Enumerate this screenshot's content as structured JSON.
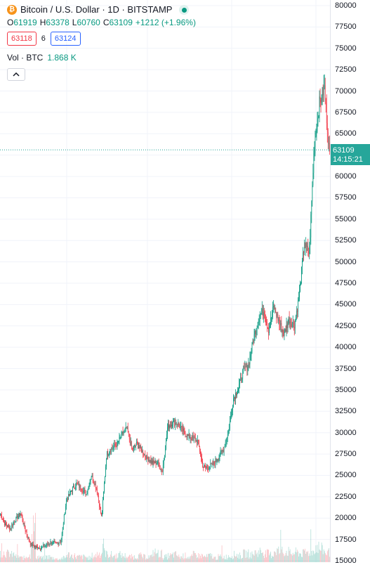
{
  "symbol": {
    "icon": "bitcoin-icon",
    "icon_glyph": "₿",
    "title": "Bitcoin / U.S. Dollar · 1D · BITSTAMP"
  },
  "ohlc": {
    "open_key": "O",
    "open": "61919",
    "high_key": "H",
    "high": "63378",
    "low_key": "L",
    "low": "60760",
    "close_key": "C",
    "close": "63109",
    "change": "+1212 (+1.96%)"
  },
  "bid": "63118",
  "spread": "6",
  "ask": "63124",
  "volume": {
    "label": "Vol · BTC",
    "value": "1.868 K"
  },
  "last_price": {
    "price": "63109",
    "countdown": "14:15:21"
  },
  "colors": {
    "up": "#089981",
    "down": "#f23645",
    "grid": "#f0f3fa",
    "price_line": "#26a69a"
  },
  "chart_data": {
    "type": "candlestick",
    "ylim": [
      15000,
      80000
    ],
    "y_ticks": [
      "80000",
      "77500",
      "75000",
      "72500",
      "70000",
      "67500",
      "65000",
      "62500",
      "60000",
      "57500",
      "55000",
      "52500",
      "50000",
      "47500",
      "45000",
      "42500",
      "40000",
      "37500",
      "35000",
      "32500",
      "30000",
      "27500",
      "25000",
      "22500",
      "20000",
      "17500",
      "15000"
    ],
    "close_trend": [
      20500,
      19200,
      18800,
      19800,
      20600,
      18500,
      16900,
      16600,
      16500,
      16800,
      17200,
      17000,
      17300,
      22000,
      23200,
      24000,
      23500,
      22800,
      25000,
      23500,
      20000,
      27500,
      28200,
      28600,
      29800,
      30500,
      28000,
      28700,
      27800,
      27000,
      26500,
      26500,
      25500,
      30600,
      31200,
      31100,
      30200,
      29600,
      29300,
      29000,
      26000,
      25900,
      26300,
      27100,
      28000,
      30000,
      34000,
      35200,
      37300,
      38000,
      41000,
      43500,
      44300,
      42000,
      44800,
      43000,
      41500,
      43300,
      42500,
      46000,
      52000,
      51000,
      64000,
      68500,
      70500,
      62300
    ],
    "volume_trend": [
      0.9,
      0.8,
      0.7,
      0.5,
      0.4,
      0.6,
      3.2,
      0.5,
      0.4,
      0.5,
      0.4,
      0.3,
      0.4,
      0.7,
      0.6,
      0.5,
      0.5,
      0.4,
      0.6,
      0.8,
      0.9,
      0.7,
      0.6,
      0.7,
      0.6,
      0.5,
      0.5,
      0.6,
      0.5,
      0.5,
      0.9,
      0.8,
      0.5,
      0.6,
      0.7,
      0.5,
      0.6,
      0.5,
      0.7,
      0.6,
      0.5,
      0.6,
      0.4,
      0.5,
      0.5,
      0.6,
      0.7,
      0.6,
      0.8,
      0.7,
      0.9,
      1.0,
      0.8,
      0.7,
      1.1,
      0.9,
      1.0,
      0.8,
      0.9,
      0.8,
      0.9,
      1.0,
      1.4,
      1.2,
      0.9,
      1.0
    ]
  }
}
